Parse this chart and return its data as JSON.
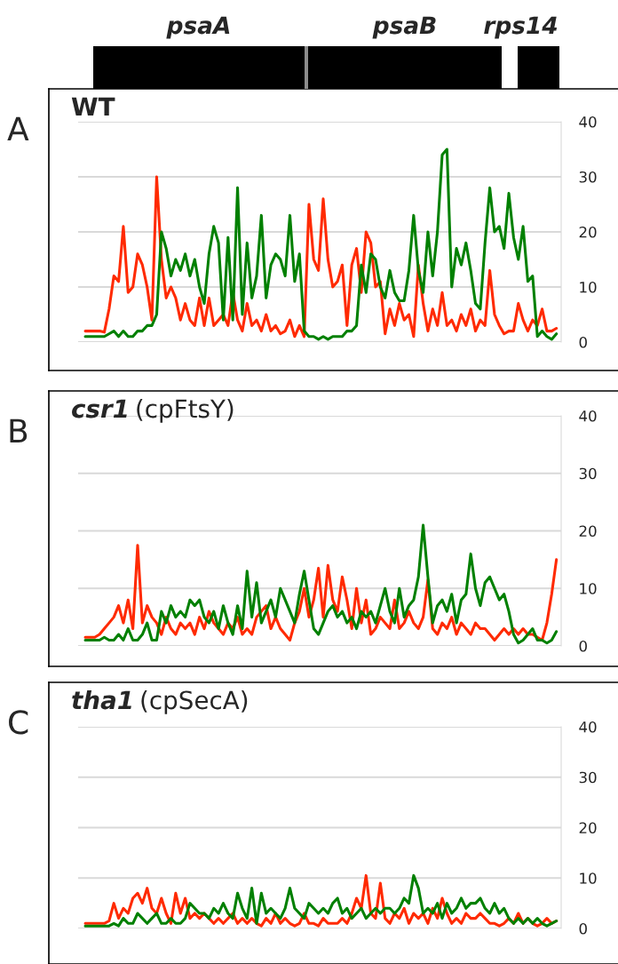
{
  "chart_data": [
    {
      "type": "line",
      "title": "WT",
      "annotations": [
        "A",
        "psaA",
        "psaB",
        "rps14"
      ],
      "categories": [
        null,
        null,
        null,
        null,
        null,
        null,
        null,
        null,
        null,
        null,
        null,
        null,
        null,
        null,
        null,
        null,
        null,
        null,
        null,
        null,
        null,
        null,
        null,
        null,
        null,
        null,
        null,
        null,
        null,
        null,
        null,
        null,
        null,
        null,
        null,
        null,
        null,
        null,
        null,
        null,
        null,
        null,
        null,
        null,
        null,
        null,
        null,
        null,
        null,
        null,
        null,
        null,
        null,
        null,
        null,
        null,
        null,
        null,
        null,
        null,
        null,
        null,
        null,
        null,
        null,
        null,
        null,
        null,
        null,
        null,
        null,
        null,
        null,
        null,
        null,
        null,
        null,
        null,
        null,
        null,
        null,
        null,
        null,
        null,
        null,
        null,
        null,
        null,
        null,
        null,
        null,
        null,
        null,
        null,
        null,
        null,
        null,
        null,
        null,
        null
      ],
      "series": [
        {
          "color": "#ff2a00",
          "values": [
            2,
            2,
            2,
            2,
            1.8,
            6,
            12,
            11,
            21,
            9,
            10,
            16,
            14,
            10,
            4,
            30,
            15,
            8,
            10,
            8,
            4,
            7,
            4,
            3,
            8,
            3,
            8,
            3,
            4,
            5,
            3,
            9,
            4,
            2,
            7,
            3,
            4,
            2,
            5,
            2,
            3,
            1.5,
            2,
            4,
            1,
            3,
            1,
            25,
            15,
            13,
            26,
            15,
            10,
            11,
            14,
            3,
            14,
            17,
            9,
            20,
            18,
            10,
            11,
            1.5,
            6,
            3,
            7,
            4,
            5,
            1,
            14,
            7,
            2,
            6,
            3,
            9,
            3,
            4,
            2,
            5,
            3,
            6,
            2,
            4,
            3,
            13,
            5,
            3,
            1.5,
            2,
            2,
            7,
            4,
            2,
            4,
            3,
            6,
            2,
            2,
            2.5
          ]
        },
        {
          "color": "#008000",
          "values": [
            1,
            1,
            1,
            1,
            1,
            1.5,
            2,
            1,
            2,
            1,
            1,
            2,
            2,
            3,
            3,
            5,
            20,
            17,
            12,
            15,
            13,
            16,
            12,
            15,
            10,
            7,
            16,
            21,
            18,
            4,
            19,
            4,
            28,
            5,
            18,
            8,
            12,
            23,
            8,
            14,
            16,
            15,
            12,
            23,
            11,
            16,
            2,
            1,
            1,
            0.5,
            1,
            0.5,
            1,
            1,
            1,
            2,
            2,
            3,
            14,
            9,
            16,
            15,
            10,
            8,
            13,
            9,
            7.5,
            7.5,
            13,
            23,
            13,
            9,
            20,
            12,
            20,
            34,
            35,
            10,
            17,
            14,
            18,
            13,
            7,
            6,
            18,
            28,
            20,
            21,
            17,
            27,
            19,
            15,
            21,
            11,
            12,
            1,
            2,
            1,
            0.5,
            1.5
          ]
        }
      ],
      "ylim": [
        0,
        40
      ],
      "yticks": [
        0,
        10,
        20,
        30,
        40
      ],
      "grid": "y",
      "tick_labels": "y"
    },
    {
      "type": "line",
      "title": "csr1 (cpFtsY)",
      "annotations": [
        "B"
      ],
      "categories": [
        null,
        null,
        null,
        null,
        null,
        null,
        null,
        null,
        null,
        null,
        null,
        null,
        null,
        null,
        null,
        null,
        null,
        null,
        null,
        null,
        null,
        null,
        null,
        null,
        null,
        null,
        null,
        null,
        null,
        null,
        null,
        null,
        null,
        null,
        null,
        null,
        null,
        null,
        null,
        null,
        null,
        null,
        null,
        null,
        null,
        null,
        null,
        null,
        null,
        null,
        null,
        null,
        null,
        null,
        null,
        null,
        null,
        null,
        null,
        null,
        null,
        null,
        null,
        null,
        null,
        null,
        null,
        null,
        null,
        null,
        null,
        null,
        null,
        null,
        null,
        null,
        null,
        null,
        null,
        null,
        null,
        null,
        null,
        null,
        null,
        null,
        null,
        null,
        null,
        null,
        null,
        null,
        null,
        null,
        null,
        null,
        null,
        null,
        null,
        null
      ],
      "series": [
        {
          "color": "#ff2a00",
          "values": [
            1.5,
            1.5,
            1.5,
            2,
            3,
            4,
            5,
            7,
            4,
            8,
            3,
            17.5,
            4,
            7,
            5,
            4,
            2,
            5,
            3,
            2,
            4,
            3,
            4,
            2,
            5,
            3,
            6,
            4,
            3,
            2,
            4,
            3,
            5,
            2,
            3,
            2,
            5,
            6,
            7,
            3,
            5,
            3,
            2,
            1,
            4,
            6,
            10,
            5,
            8,
            13.5,
            5,
            14,
            8,
            6,
            12,
            8,
            3,
            10,
            4,
            8,
            2,
            3,
            5,
            4,
            3,
            8,
            3,
            4,
            6,
            4,
            3,
            5,
            11.5,
            3,
            2,
            4,
            3,
            5,
            2,
            4,
            3,
            2,
            4,
            3,
            3,
            2,
            1,
            2,
            3,
            2,
            3,
            2,
            3,
            2,
            2,
            1.5,
            1,
            4,
            9,
            15
          ]
        },
        {
          "color": "#008000",
          "values": [
            1,
            1,
            1,
            1,
            1.5,
            1,
            1,
            2,
            1,
            3,
            1,
            1,
            2,
            4,
            1,
            1,
            6,
            4,
            7,
            5,
            6,
            5,
            8,
            7,
            8,
            5,
            4,
            6,
            3,
            7,
            4,
            2,
            7,
            3,
            13,
            5,
            11,
            4,
            6,
            8,
            5,
            10,
            8,
            6,
            4,
            9,
            13,
            8,
            3,
            2,
            4,
            6,
            7,
            5,
            6,
            4,
            5,
            3,
            6,
            5,
            6,
            4,
            7,
            10,
            6,
            4,
            10,
            5,
            7,
            8,
            12,
            21,
            12,
            4,
            7,
            8,
            6,
            9,
            4,
            8,
            9,
            16,
            10,
            7,
            11,
            12,
            10,
            8,
            9,
            6,
            2,
            0.5,
            1,
            2,
            3,
            1,
            1,
            0.5,
            1,
            2.5
          ]
        }
      ],
      "ylim": [
        0,
        40
      ],
      "yticks": [
        0,
        10,
        20,
        30,
        40
      ],
      "grid": "y",
      "tick_labels": "y"
    },
    {
      "type": "line",
      "title": "tha1 (cpSecA)",
      "annotations": [
        "C"
      ],
      "categories": [
        null,
        null,
        null,
        null,
        null,
        null,
        null,
        null,
        null,
        null,
        null,
        null,
        null,
        null,
        null,
        null,
        null,
        null,
        null,
        null,
        null,
        null,
        null,
        null,
        null,
        null,
        null,
        null,
        null,
        null,
        null,
        null,
        null,
        null,
        null,
        null,
        null,
        null,
        null,
        null,
        null,
        null,
        null,
        null,
        null,
        null,
        null,
        null,
        null,
        null,
        null,
        null,
        null,
        null,
        null,
        null,
        null,
        null,
        null,
        null,
        null,
        null,
        null,
        null,
        null,
        null,
        null,
        null,
        null,
        null,
        null,
        null,
        null,
        null,
        null,
        null,
        null,
        null,
        null,
        null,
        null,
        null,
        null,
        null,
        null,
        null,
        null,
        null,
        null,
        null,
        null,
        null,
        null,
        null,
        null,
        null,
        null,
        null,
        null,
        null
      ],
      "series": [
        {
          "color": "#ff2a00",
          "values": [
            1,
            1,
            1,
            1,
            1,
            1.5,
            5,
            2,
            4,
            3,
            6,
            7,
            5,
            8,
            4,
            3,
            6,
            3,
            1,
            7,
            3,
            6,
            2,
            3,
            2,
            3,
            2,
            1,
            2,
            1,
            2,
            3,
            1,
            2,
            1,
            2,
            1,
            0.5,
            2,
            1,
            3,
            1,
            2,
            1,
            0.5,
            1,
            3,
            1,
            1,
            0.5,
            2,
            1,
            1,
            1,
            2,
            1,
            3,
            6,
            4,
            10.5,
            3,
            2,
            9,
            2,
            1,
            3,
            2,
            4,
            1,
            3,
            2,
            3,
            1,
            4,
            2,
            6,
            3,
            1,
            2,
            1,
            3,
            2,
            2,
            3,
            2,
            1,
            1,
            0.5,
            1,
            2,
            1,
            3,
            1,
            2,
            1,
            0.5,
            1,
            2,
            1,
            1.5
          ]
        },
        {
          "color": "#008000",
          "values": [
            0.5,
            0.5,
            0.5,
            0.5,
            0.5,
            0.5,
            1,
            0.5,
            2,
            1,
            1,
            3,
            2,
            1,
            2,
            3,
            1,
            1,
            2,
            1,
            1,
            2,
            5,
            4,
            3,
            3,
            2,
            4,
            3,
            5,
            3,
            2,
            7,
            4,
            2,
            8,
            1,
            7,
            3,
            4,
            3,
            2,
            4,
            8,
            4,
            3,
            2,
            5,
            4,
            3,
            4,
            3,
            5,
            6,
            3,
            4,
            2,
            3,
            4,
            2,
            3,
            4,
            3,
            4,
            4,
            3,
            4,
            6,
            5,
            10.5,
            8,
            3,
            4,
            3,
            5,
            2,
            5,
            3,
            4,
            6,
            4,
            5,
            5,
            6,
            4,
            3,
            5,
            3,
            4,
            2,
            1,
            2,
            1,
            2,
            1,
            2,
            1,
            0.5,
            1,
            1.5
          ]
        }
      ],
      "ylim": [
        0,
        40
      ],
      "yticks": [
        0,
        10,
        20,
        30,
        40
      ],
      "grid": "y",
      "tick_labels": "y"
    }
  ]
}
